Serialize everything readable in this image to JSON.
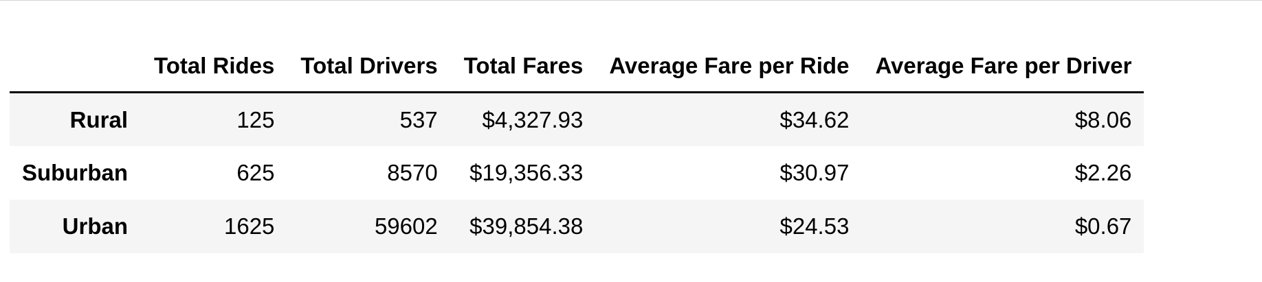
{
  "table": {
    "index_header": "",
    "columns": [
      "Total Rides",
      "Total Drivers",
      "Total Fares",
      "Average Fare per Ride",
      "Average Fare per Driver"
    ],
    "rows": [
      {
        "label": "Rural",
        "values": [
          "125",
          "537",
          "$4,327.93",
          "$34.62",
          "$8.06"
        ]
      },
      {
        "label": "Suburban",
        "values": [
          "625",
          "8570",
          "$19,356.33",
          "$30.97",
          "$2.26"
        ]
      },
      {
        "label": "Urban",
        "values": [
          "1625",
          "59602",
          "$39,854.38",
          "$24.53",
          "$0.67"
        ]
      }
    ]
  }
}
